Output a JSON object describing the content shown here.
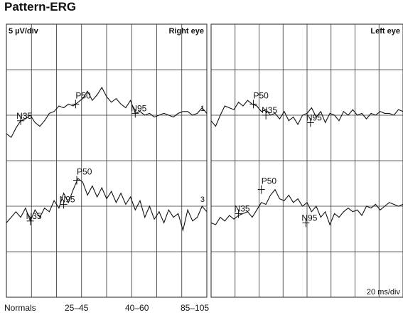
{
  "title": "Pattern-ERG",
  "chart_data": {
    "type": "line",
    "title": "Pattern-ERG",
    "scale_label": "5 µV/div",
    "time_label": "20 ms/div",
    "grid": true,
    "panels": [
      {
        "label": "Right eye",
        "traces": [
          {
            "id": "1",
            "points": [
              [
                0,
                -1.0
              ],
              [
                4,
                -1.2
              ],
              [
                8,
                -0.7
              ],
              [
                12,
                -0.3
              ],
              [
                16,
                -0.2
              ],
              [
                20,
                0.0
              ],
              [
                24,
                -0.4
              ],
              [
                28,
                -0.6
              ],
              [
                32,
                -0.3
              ],
              [
                36,
                0.1
              ],
              [
                40,
                0.2
              ],
              [
                44,
                0.5
              ],
              [
                48,
                0.4
              ],
              [
                52,
                0.6
              ],
              [
                56,
                0.5
              ],
              [
                60,
                0.7
              ],
              [
                64,
                0.9
              ],
              [
                68,
                1.3
              ],
              [
                72,
                0.8
              ],
              [
                76,
                1.1
              ],
              [
                80,
                1.5
              ],
              [
                84,
                1.0
              ],
              [
                88,
                0.7
              ],
              [
                92,
                0.9
              ],
              [
                96,
                0.6
              ],
              [
                100,
                0.4
              ],
              [
                104,
                0.8
              ],
              [
                108,
                0.1
              ],
              [
                112,
                0.2
              ],
              [
                116,
                0.0
              ],
              [
                120,
                0.1
              ],
              [
                124,
                -0.1
              ],
              [
                128,
                0.0
              ],
              [
                132,
                0.1
              ],
              [
                136,
                0.0
              ],
              [
                140,
                -0.1
              ],
              [
                144,
                0.1
              ],
              [
                148,
                0.2
              ],
              [
                152,
                0.2
              ],
              [
                156,
                0.0
              ],
              [
                160,
                0.1
              ],
              [
                164,
                0.4
              ],
              [
                168,
                0.1
              ]
            ],
            "markers": [
              {
                "label": "N35",
                "x": 12,
                "y": -0.3
              },
              {
                "label": "P50",
                "x": 58,
                "y": 0.6
              },
              {
                "label": "N95",
                "x": 108,
                "y": 0.1
              }
            ]
          },
          {
            "id": "3",
            "points": [
              [
                0,
                -0.9
              ],
              [
                4,
                -0.6
              ],
              [
                8,
                -0.3
              ],
              [
                12,
                -0.6
              ],
              [
                16,
                -0.1
              ],
              [
                20,
                -0.8
              ],
              [
                24,
                -0.2
              ],
              [
                28,
                -0.6
              ],
              [
                32,
                -0.1
              ],
              [
                36,
                -0.3
              ],
              [
                40,
                0.3
              ],
              [
                44,
                -0.1
              ],
              [
                48,
                0.7
              ],
              [
                52,
                0.2
              ],
              [
                56,
                0.9
              ],
              [
                60,
                1.5
              ],
              [
                64,
                1.3
              ],
              [
                68,
                0.6
              ],
              [
                72,
                1.1
              ],
              [
                76,
                0.5
              ],
              [
                80,
                1.0
              ],
              [
                84,
                0.4
              ],
              [
                88,
                0.8
              ],
              [
                92,
                0.2
              ],
              [
                96,
                0.7
              ],
              [
                100,
                0.1
              ],
              [
                104,
                0.5
              ],
              [
                108,
                -0.2
              ],
              [
                112,
                0.3
              ],
              [
                116,
                -0.6
              ],
              [
                120,
                0.0
              ],
              [
                124,
                -0.7
              ],
              [
                128,
                -0.3
              ],
              [
                132,
                -0.9
              ],
              [
                136,
                -0.2
              ],
              [
                140,
                -0.6
              ],
              [
                144,
                -0.4
              ],
              [
                148,
                -1.3
              ],
              [
                152,
                -0.2
              ],
              [
                156,
                -0.8
              ],
              [
                160,
                -0.6
              ],
              [
                164,
                0.0
              ],
              [
                168,
                -0.3
              ]
            ],
            "markers": [
              {
                "label": "N35",
                "x": 20,
                "y": -0.8
              },
              {
                "label": "P50",
                "x": 59,
                "y": 1.4
              },
              {
                "label": "N95",
                "x": 48,
                "y": 0.1
              }
            ]
          }
        ]
      },
      {
        "label": "Left eye",
        "traces": [
          {
            "id": "2",
            "points": [
              [
                0,
                -0.3
              ],
              [
                4,
                -0.6
              ],
              [
                8,
                0.0
              ],
              [
                12,
                0.5
              ],
              [
                16,
                0.4
              ],
              [
                20,
                0.3
              ],
              [
                24,
                0.7
              ],
              [
                28,
                0.5
              ],
              [
                32,
                0.8
              ],
              [
                36,
                0.6
              ],
              [
                40,
                0.5
              ],
              [
                44,
                0.2
              ],
              [
                48,
                0.3
              ],
              [
                52,
                0.0
              ],
              [
                56,
                0.1
              ],
              [
                60,
                -0.2
              ],
              [
                64,
                0.2
              ],
              [
                68,
                -0.3
              ],
              [
                72,
                -0.1
              ],
              [
                76,
                -0.5
              ],
              [
                80,
                0.0
              ],
              [
                84,
                0.1
              ],
              [
                88,
                0.4
              ],
              [
                92,
                -0.1
              ],
              [
                96,
                0.2
              ],
              [
                100,
                -0.4
              ],
              [
                104,
                0.1
              ],
              [
                108,
                0.0
              ],
              [
                112,
                -0.3
              ],
              [
                116,
                0.2
              ],
              [
                120,
                0.0
              ],
              [
                124,
                0.3
              ],
              [
                128,
                0.0
              ],
              [
                132,
                0.1
              ],
              [
                136,
                -0.2
              ],
              [
                140,
                0.1
              ],
              [
                144,
                0.0
              ],
              [
                148,
                0.2
              ],
              [
                152,
                0.1
              ],
              [
                156,
                0.1
              ],
              [
                160,
                0.0
              ],
              [
                164,
                0.3
              ],
              [
                168,
                0.2
              ]
            ],
            "markers": [
              {
                "label": "P50",
                "x": 37,
                "y": 0.6
              },
              {
                "label": "N35",
                "x": 48,
                "y": 0.0
              },
              {
                "label": "N95",
                "x": 87,
                "y": -0.4
              }
            ]
          },
          {
            "id": "4",
            "points": [
              [
                0,
                -0.9
              ],
              [
                4,
                -1.0
              ],
              [
                8,
                -0.6
              ],
              [
                12,
                -0.8
              ],
              [
                16,
                -0.5
              ],
              [
                20,
                -0.7
              ],
              [
                24,
                -0.5
              ],
              [
                28,
                -0.4
              ],
              [
                32,
                -0.3
              ],
              [
                36,
                -0.6
              ],
              [
                40,
                -0.2
              ],
              [
                44,
                0.2
              ],
              [
                48,
                0.1
              ],
              [
                52,
                0.6
              ],
              [
                56,
                0.9
              ],
              [
                60,
                0.4
              ],
              [
                64,
                0.3
              ],
              [
                68,
                0.6
              ],
              [
                72,
                0.2
              ],
              [
                76,
                0.4
              ],
              [
                80,
                0.0
              ],
              [
                84,
                0.2
              ],
              [
                88,
                -0.3
              ],
              [
                92,
                0.0
              ],
              [
                96,
                -0.6
              ],
              [
                100,
                -0.3
              ],
              [
                104,
                -1.0
              ],
              [
                108,
                -0.4
              ],
              [
                112,
                -0.6
              ],
              [
                116,
                -0.3
              ],
              [
                120,
                -0.1
              ],
              [
                124,
                -0.3
              ],
              [
                128,
                -0.2
              ],
              [
                132,
                -0.5
              ],
              [
                136,
                0.0
              ],
              [
                140,
                -0.1
              ],
              [
                144,
                0.1
              ],
              [
                148,
                -0.2
              ],
              [
                152,
                0.0
              ],
              [
                156,
                0.2
              ],
              [
                160,
                0.1
              ],
              [
                164,
                0.0
              ],
              [
                168,
                0.1
              ]
            ],
            "markers": [
              {
                "label": "N35",
                "x": 24,
                "y": -0.4
              },
              {
                "label": "P50",
                "x": 44,
                "y": 0.9
              },
              {
                "label": "N95",
                "x": 83,
                "y": -0.9
              }
            ]
          }
        ]
      }
    ],
    "normals": {
      "label": "Normals",
      "ranges": [
        "25–45",
        "40–60",
        "85–105"
      ]
    }
  }
}
